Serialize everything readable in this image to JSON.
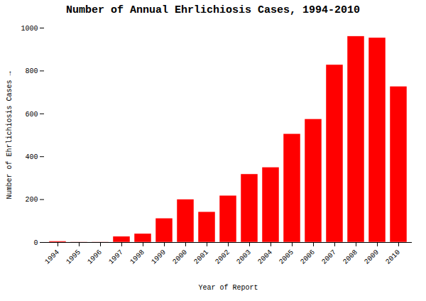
{
  "chart_data": {
    "type": "bar",
    "title": "Number of Annual Ehrlichiosis Cases, 1994-2010",
    "xlabel": "Year of Report",
    "ylabel": "Number of Ehrlichiosis Cases",
    "categories": [
      "1994",
      "1995",
      "1996",
      "1997",
      "1998",
      "1999",
      "2000",
      "2001",
      "2002",
      "2003",
      "2004",
      "2005",
      "2006",
      "2007",
      "2008",
      "2009",
      "2010"
    ],
    "values": [
      5,
      2,
      2,
      27,
      40,
      112,
      200,
      142,
      218,
      318,
      350,
      506,
      575,
      828,
      961,
      954,
      727
    ],
    "color": "#ff0000",
    "ylim": [
      0,
      1000
    ],
    "yticks": [
      0,
      200,
      400,
      600,
      800,
      1000
    ],
    "grid": false
  }
}
